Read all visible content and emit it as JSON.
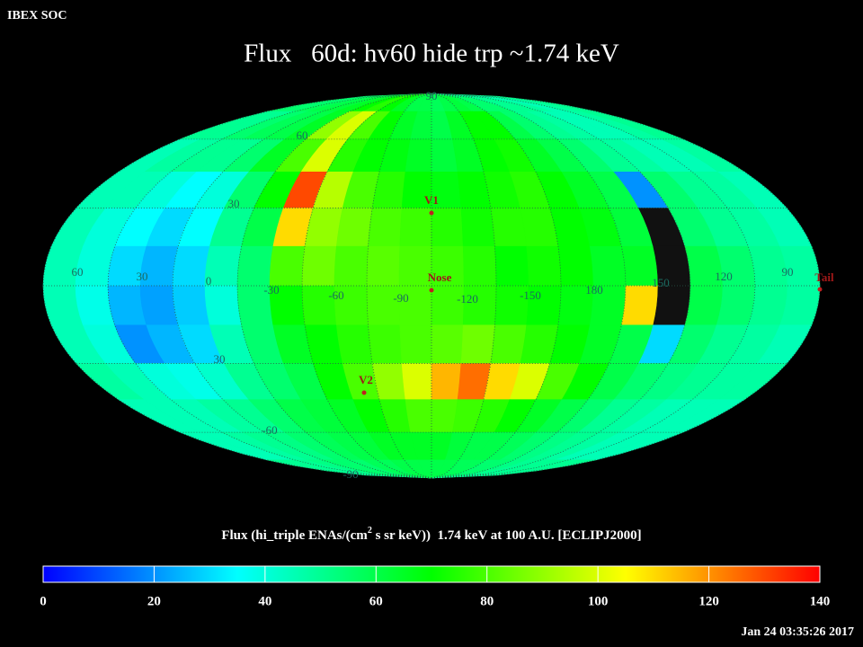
{
  "header": {
    "org": "IBEX SOC",
    "title": "Flux   60d: hv60 hide trp ~1.74 keV"
  },
  "map": {
    "grid_labels": [
      90,
      60,
      30,
      60,
      30,
      0,
      -30,
      -60,
      -90,
      -120,
      -150,
      180,
      150,
      120,
      90,
      30,
      -60,
      -90
    ],
    "markers": [
      "V1",
      "Nose",
      "V2",
      "Tail"
    ],
    "cells": [
      [
        55,
        55,
        58,
        60,
        62,
        65,
        70,
        75,
        70,
        65,
        60,
        60,
        58,
        60,
        62,
        60,
        55,
        55,
        50,
        50,
        48,
        45,
        48,
        50
      ],
      [
        50,
        50,
        55,
        58,
        60,
        65,
        90,
        100,
        80,
        70,
        65,
        62,
        60,
        65,
        70,
        70,
        60,
        55,
        50,
        48,
        45,
        45,
        48,
        50
      ],
      [
        45,
        48,
        50,
        50,
        55,
        65,
        80,
        100,
        75,
        70,
        68,
        65,
        62,
        65,
        70,
        72,
        65,
        60,
        55,
        50,
        48,
        45,
        45,
        48
      ],
      [
        45,
        45,
        40,
        35,
        40,
        55,
        70,
        130,
        95,
        80,
        75,
        70,
        68,
        70,
        72,
        75,
        70,
        65,
        60,
        20,
        55,
        50,
        48,
        45
      ],
      [
        45,
        40,
        35,
        30,
        35,
        50,
        60,
        110,
        90,
        85,
        80,
        78,
        75,
        72,
        75,
        75,
        70,
        68,
        62,
        null,
        55,
        50,
        48,
        45
      ],
      [
        45,
        40,
        30,
        25,
        30,
        45,
        55,
        80,
        85,
        80,
        82,
        80,
        78,
        75,
        70,
        72,
        70,
        65,
        65,
        null,
        60,
        55,
        50,
        48
      ],
      [
        45,
        38,
        25,
        22,
        28,
        40,
        55,
        70,
        75,
        78,
        80,
        80,
        78,
        75,
        72,
        70,
        68,
        65,
        110,
        null,
        60,
        55,
        50,
        48
      ],
      [
        45,
        40,
        20,
        25,
        30,
        45,
        55,
        65,
        70,
        75,
        78,
        80,
        82,
        85,
        80,
        75,
        70,
        65,
        60,
        30,
        55,
        50,
        48,
        45
      ],
      [
        48,
        45,
        40,
        38,
        42,
        50,
        55,
        60,
        70,
        80,
        90,
        100,
        115,
        125,
        110,
        100,
        80,
        70,
        60,
        55,
        52,
        50,
        48,
        48
      ],
      [
        45,
        45,
        45,
        48,
        50,
        55,
        60,
        62,
        65,
        70,
        75,
        80,
        80,
        78,
        75,
        70,
        65,
        60,
        55,
        50,
        48,
        45,
        45,
        45
      ],
      [
        45,
        45,
        48,
        50,
        52,
        55,
        58,
        60,
        62,
        65,
        65,
        65,
        65,
        62,
        60,
        60,
        58,
        55,
        52,
        50,
        48,
        45,
        45,
        45
      ],
      [
        50,
        50,
        50,
        52,
        55,
        55,
        55,
        58,
        58,
        60,
        60,
        60,
        60,
        60,
        58,
        58,
        55,
        55,
        52,
        50,
        50,
        50,
        50,
        50
      ]
    ]
  },
  "colorbar": {
    "label_start": "Flux (hi_triple ENAs/(cm",
    "label_sup": "2",
    "label_end": " s sr keV))  1.74 keV at 100 A.U. [ECLIPJ2000]",
    "range": [
      0,
      140
    ],
    "ticks": [
      0,
      20,
      40,
      60,
      80,
      100,
      120,
      140
    ],
    "colors": [
      "#0000ff",
      "#0080ff",
      "#00ffff",
      "#00ff80",
      "#00ff00",
      "#80ff00",
      "#ffff00",
      "#ff8000",
      "#ff0000"
    ]
  },
  "timestamp": "Jan 24 03:35:26 2017"
}
